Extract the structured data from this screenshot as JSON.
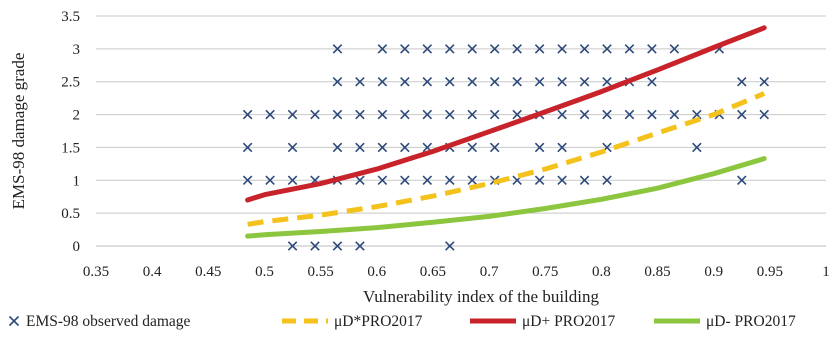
{
  "chart_data": {
    "type": "scatter",
    "title": "",
    "xlabel": "Vulnerability index of the building",
    "ylabel": "EMS-98 damage grade",
    "xlim": [
      0.35,
      1
    ],
    "ylim": [
      0,
      3.5
    ],
    "xticks": [
      0.35,
      0.4,
      0.45,
      0.5,
      0.55,
      0.6,
      0.65,
      0.7,
      0.75,
      0.8,
      0.85,
      0.9,
      0.95,
      1
    ],
    "xtick_labels": [
      "0.35",
      "0.4",
      "0.45",
      "0.5",
      "0.55",
      "0.6",
      "0.65",
      "0.7",
      "0.75",
      "0.8",
      "0.85",
      "0.9",
      "0.95",
      "1"
    ],
    "yticks": [
      0,
      0.5,
      1,
      1.5,
      2,
      2.5,
      3,
      3.5
    ],
    "ytick_labels": [
      "0",
      "0.5",
      "1",
      "1.5",
      "2",
      "2.5",
      "3",
      "3.5"
    ],
    "grid": "horizontal",
    "legend_position": "bottom",
    "series": [
      {
        "name": "EMS-98 observed damage",
        "kind": "markers",
        "marker": "x",
        "color": "#2e4a7a",
        "points": [
          [
            0.525,
            0
          ],
          [
            0.545,
            0
          ],
          [
            0.565,
            0
          ],
          [
            0.585,
            0
          ],
          [
            0.665,
            0
          ],
          [
            0.485,
            1
          ],
          [
            0.505,
            1
          ],
          [
            0.525,
            1
          ],
          [
            0.545,
            1
          ],
          [
            0.565,
            1
          ],
          [
            0.585,
            1
          ],
          [
            0.605,
            1
          ],
          [
            0.625,
            1
          ],
          [
            0.645,
            1
          ],
          [
            0.665,
            1
          ],
          [
            0.685,
            1
          ],
          [
            0.705,
            1
          ],
          [
            0.725,
            1
          ],
          [
            0.745,
            1
          ],
          [
            0.765,
            1
          ],
          [
            0.785,
            1
          ],
          [
            0.805,
            1
          ],
          [
            0.925,
            1
          ],
          [
            0.485,
            1.5
          ],
          [
            0.525,
            1.5
          ],
          [
            0.565,
            1.5
          ],
          [
            0.585,
            1.5
          ],
          [
            0.605,
            1.5
          ],
          [
            0.625,
            1.5
          ],
          [
            0.645,
            1.5
          ],
          [
            0.665,
            1.5
          ],
          [
            0.685,
            1.5
          ],
          [
            0.705,
            1.5
          ],
          [
            0.745,
            1.5
          ],
          [
            0.765,
            1.5
          ],
          [
            0.805,
            1.5
          ],
          [
            0.885,
            1.5
          ],
          [
            0.485,
            2
          ],
          [
            0.505,
            2
          ],
          [
            0.525,
            2
          ],
          [
            0.545,
            2
          ],
          [
            0.565,
            2
          ],
          [
            0.585,
            2
          ],
          [
            0.605,
            2
          ],
          [
            0.625,
            2
          ],
          [
            0.645,
            2
          ],
          [
            0.665,
            2
          ],
          [
            0.685,
            2
          ],
          [
            0.705,
            2
          ],
          [
            0.725,
            2
          ],
          [
            0.745,
            2
          ],
          [
            0.765,
            2
          ],
          [
            0.785,
            2
          ],
          [
            0.805,
            2
          ],
          [
            0.825,
            2
          ],
          [
            0.845,
            2
          ],
          [
            0.865,
            2
          ],
          [
            0.885,
            2
          ],
          [
            0.905,
            2
          ],
          [
            0.925,
            2
          ],
          [
            0.945,
            2
          ],
          [
            0.565,
            2.5
          ],
          [
            0.585,
            2.5
          ],
          [
            0.605,
            2.5
          ],
          [
            0.625,
            2.5
          ],
          [
            0.645,
            2.5
          ],
          [
            0.665,
            2.5
          ],
          [
            0.685,
            2.5
          ],
          [
            0.705,
            2.5
          ],
          [
            0.725,
            2.5
          ],
          [
            0.745,
            2.5
          ],
          [
            0.765,
            2.5
          ],
          [
            0.785,
            2.5
          ],
          [
            0.805,
            2.5
          ],
          [
            0.825,
            2.5
          ],
          [
            0.845,
            2.5
          ],
          [
            0.925,
            2.5
          ],
          [
            0.945,
            2.5
          ],
          [
            0.565,
            3
          ],
          [
            0.605,
            3
          ],
          [
            0.625,
            3
          ],
          [
            0.645,
            3
          ],
          [
            0.665,
            3
          ],
          [
            0.685,
            3
          ],
          [
            0.705,
            3
          ],
          [
            0.725,
            3
          ],
          [
            0.745,
            3
          ],
          [
            0.765,
            3
          ],
          [
            0.785,
            3
          ],
          [
            0.805,
            3
          ],
          [
            0.825,
            3
          ],
          [
            0.845,
            3
          ],
          [
            0.865,
            3
          ],
          [
            0.905,
            3
          ]
        ]
      },
      {
        "name": "μD*PRO2017",
        "kind": "line",
        "style": "dashed",
        "color": "#f4c21d",
        "x": [
          0.485,
          0.5,
          0.55,
          0.6,
          0.65,
          0.7,
          0.75,
          0.8,
          0.85,
          0.9,
          0.945
        ],
        "y": [
          0.33,
          0.37,
          0.47,
          0.6,
          0.76,
          0.95,
          1.17,
          1.43,
          1.72,
          2.0,
          2.32
        ]
      },
      {
        "name": "μD+ PRO2017",
        "kind": "line",
        "style": "solid",
        "color": "#c8232a",
        "x": [
          0.485,
          0.5,
          0.55,
          0.6,
          0.65,
          0.7,
          0.75,
          0.8,
          0.85,
          0.9,
          0.945
        ],
        "y": [
          0.7,
          0.78,
          0.95,
          1.17,
          1.44,
          1.74,
          2.04,
          2.35,
          2.68,
          3.02,
          3.32
        ]
      },
      {
        "name": "μD- PRO2017",
        "kind": "line",
        "style": "solid",
        "color": "#8cc63f",
        "x": [
          0.485,
          0.5,
          0.55,
          0.6,
          0.65,
          0.7,
          0.75,
          0.8,
          0.85,
          0.9,
          0.945
        ],
        "y": [
          0.15,
          0.17,
          0.22,
          0.28,
          0.36,
          0.45,
          0.57,
          0.71,
          0.88,
          1.1,
          1.33
        ]
      }
    ]
  }
}
